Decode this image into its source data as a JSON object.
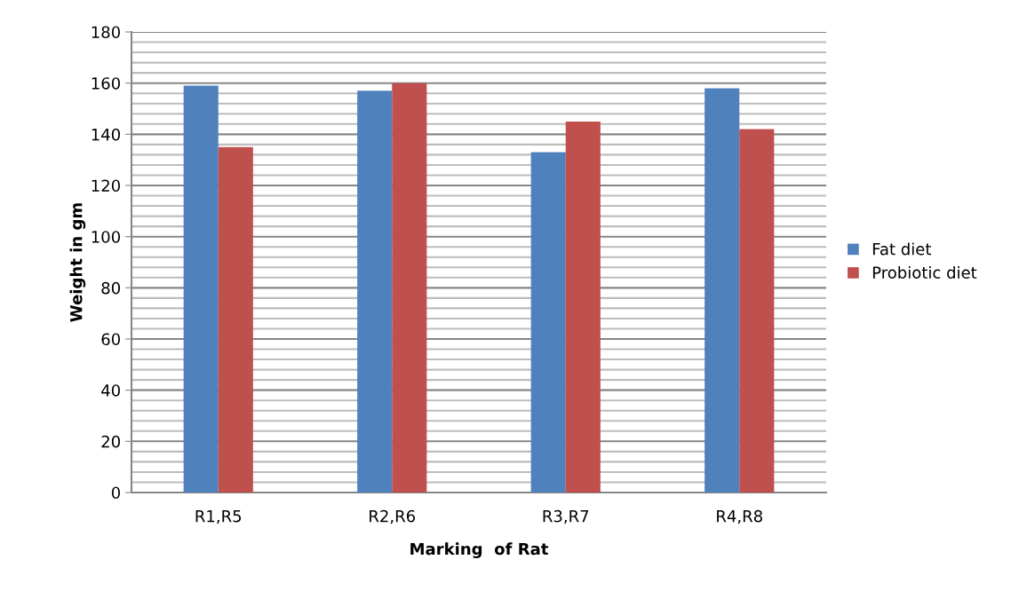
{
  "chart_data": {
    "type": "bar",
    "xlabel": "Marking  of Rat",
    "ylabel": "Weight in gm",
    "categories": [
      "R1,R5",
      "R2,R6",
      "R3,R7",
      "R4,R8"
    ],
    "series": [
      {
        "name": "Fat diet",
        "color": "#4f81bd",
        "values": [
          159,
          157,
          133,
          158
        ]
      },
      {
        "name": "Probiotic diet",
        "color": "#c0504d",
        "values": [
          135,
          160,
          145,
          142
        ]
      }
    ],
    "ylim": [
      0,
      180
    ],
    "yticks": [
      0,
      20,
      40,
      60,
      80,
      100,
      120,
      140,
      160,
      180
    ],
    "grid": "y",
    "legend": "right"
  }
}
